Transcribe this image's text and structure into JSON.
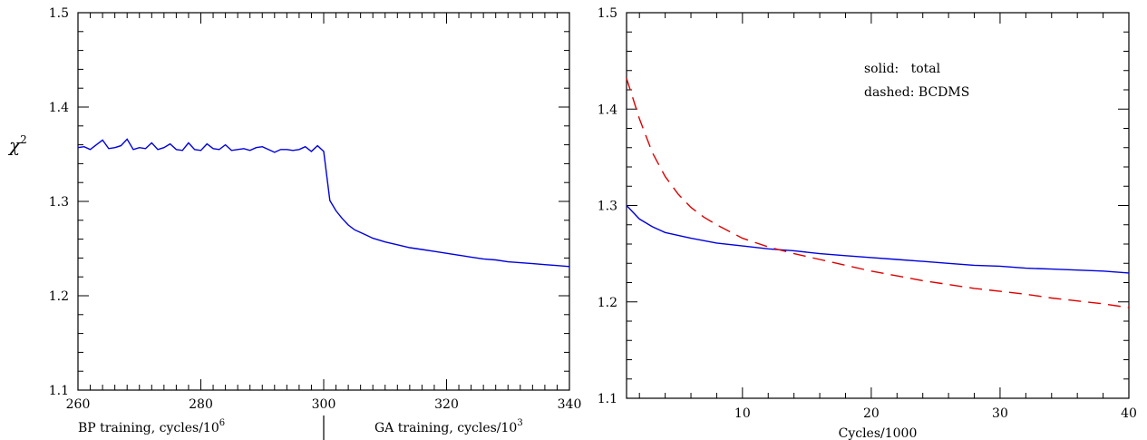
{
  "chart_data": [
    {
      "type": "line",
      "ylabel": "χ",
      "ylabel_sup": "2",
      "xlim": [
        260,
        340
      ],
      "ylim": [
        1.1,
        1.5
      ],
      "x_ticks": [
        260,
        280,
        300,
        320,
        340
      ],
      "y_ticks": [
        1.1,
        1.2,
        1.3,
        1.4,
        1.5
      ],
      "y_tick_labels": [
        "1.1",
        "1.2",
        "1.3",
        "1.4",
        "1.5"
      ],
      "xlabel_left": "BP training, cycles/10",
      "xlabel_left_sup": "6",
      "xlabel_right": "GA training, cycles/10",
      "xlabel_right_sup": "3",
      "divider_x": 300,
      "series": [
        {
          "color": "#0000dd",
          "dash": "solid",
          "x": [
            260,
            261,
            262,
            263,
            264,
            265,
            266,
            267,
            268,
            269,
            270,
            271,
            272,
            273,
            274,
            275,
            276,
            277,
            278,
            279,
            280,
            281,
            282,
            283,
            284,
            285,
            286,
            287,
            288,
            289,
            290,
            291,
            292,
            293,
            294,
            295,
            296,
            297,
            298,
            299,
            300,
            301,
            302,
            303,
            304,
            305,
            306,
            307,
            308,
            310,
            312,
            314,
            316,
            318,
            320,
            322,
            324,
            326,
            328,
            330,
            332,
            334,
            336,
            338,
            340
          ],
          "y": [
            1.357,
            1.358,
            1.355,
            1.36,
            1.365,
            1.356,
            1.357,
            1.359,
            1.366,
            1.355,
            1.357,
            1.356,
            1.362,
            1.355,
            1.357,
            1.361,
            1.355,
            1.354,
            1.362,
            1.355,
            1.354,
            1.361,
            1.356,
            1.355,
            1.36,
            1.354,
            1.355,
            1.356,
            1.354,
            1.357,
            1.358,
            1.355,
            1.352,
            1.355,
            1.355,
            1.354,
            1.355,
            1.358,
            1.353,
            1.359,
            1.353,
            1.301,
            1.29,
            1.282,
            1.275,
            1.27,
            1.267,
            1.264,
            1.261,
            1.257,
            1.254,
            1.251,
            1.249,
            1.247,
            1.245,
            1.243,
            1.241,
            1.239,
            1.238,
            1.236,
            1.235,
            1.234,
            1.233,
            1.232,
            1.231
          ]
        }
      ]
    },
    {
      "type": "line",
      "xlabel": "Cycles/1000",
      "xlim": [
        1,
        40
      ],
      "ylim": [
        1.1,
        1.5
      ],
      "x_ticks": [
        10,
        20,
        30,
        40
      ],
      "y_ticks": [
        1.1,
        1.2,
        1.3,
        1.4,
        1.5
      ],
      "y_tick_labels": [
        "1.1",
        "1.2",
        "1.3",
        "1.4",
        "1.5"
      ],
      "annotations": [
        "solid:   total",
        "dashed: BCDMS"
      ],
      "series": [
        {
          "name": "total",
          "color": "#0000dd",
          "dash": "solid",
          "x": [
            1,
            2,
            3,
            4,
            5,
            6,
            8,
            10,
            12,
            14,
            16,
            18,
            20,
            22,
            24,
            26,
            28,
            30,
            32,
            34,
            36,
            38,
            40
          ],
          "y": [
            1.3,
            1.286,
            1.278,
            1.272,
            1.269,
            1.266,
            1.261,
            1.258,
            1.255,
            1.253,
            1.25,
            1.248,
            1.246,
            1.244,
            1.242,
            1.24,
            1.238,
            1.237,
            1.235,
            1.234,
            1.233,
            1.232,
            1.23
          ]
        },
        {
          "name": "BCDMS",
          "color": "#dd0000",
          "dash": "dashed",
          "x": [
            1,
            2,
            3,
            4,
            5,
            6,
            7,
            8,
            10,
            12,
            14,
            16,
            18,
            20,
            22,
            24,
            26,
            28,
            30,
            32,
            34,
            36,
            38,
            40
          ],
          "y": [
            1.432,
            1.39,
            1.355,
            1.33,
            1.312,
            1.298,
            1.288,
            1.28,
            1.266,
            1.257,
            1.25,
            1.244,
            1.238,
            1.232,
            1.227,
            1.222,
            1.218,
            1.214,
            1.211,
            1.208,
            1.204,
            1.201,
            1.198,
            1.194
          ]
        }
      ]
    }
  ]
}
